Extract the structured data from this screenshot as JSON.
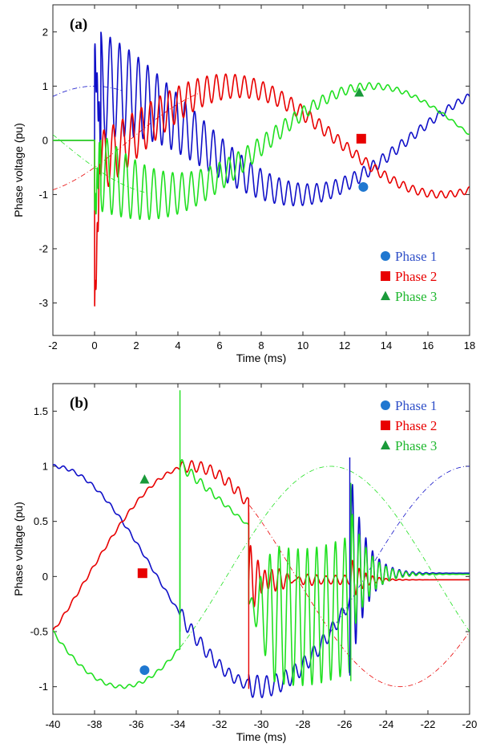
{
  "chart_data": [
    {
      "type": "line",
      "panel_label": "(a)",
      "xlabel": "Time (ms)",
      "ylabel": "Phase voltage (pu)",
      "xlim": [
        -2,
        18
      ],
      "ylim": [
        -3.6,
        2.5
      ],
      "x_ticks": [
        "-2",
        "0",
        "2",
        "4",
        "6",
        "8",
        "10",
        "12",
        "14",
        "16",
        "18"
      ],
      "y_ticks": [
        "-3",
        "-2",
        "-1",
        "0",
        "1",
        "2"
      ],
      "x_tick_values": [
        -2,
        0,
        2,
        4,
        6,
        8,
        10,
        12,
        14,
        16,
        18
      ],
      "y_tick_values": [
        -3,
        -2,
        -1,
        0,
        1,
        2
      ],
      "legend_position": "bottom-right",
      "event_times": [
        0,
        0.3
      ],
      "oscillation_period_ms": 0.45,
      "oscillation_decay_ms": 6,
      "series": [
        {
          "name": "Phase 1",
          "marker": "circle",
          "color": "#1010c8",
          "marker_color": "#1f77d0",
          "text_color": "#3050c8",
          "phase_deg": 90,
          "dashed_to": 1.4,
          "initial_spike": 1.6,
          "ringing_amp": 1.0,
          "marker_x": 12.9,
          "marker_y": -0.86
        },
        {
          "name": "Phase 2",
          "marker": "square",
          "color": "#e80000",
          "marker_color": "#e80000",
          "text_color": "#e80000",
          "phase_deg": -30,
          "dashed_to": 5.0,
          "initial_spike": -3.2,
          "ringing_amp": 0.55,
          "marker_x": 12.8,
          "marker_y": 0.03
        },
        {
          "name": "Phase 3",
          "marker": "triangle",
          "color": "#20e020",
          "marker_color": "#1a9a3a",
          "text_color": "#20b830",
          "phase_deg": 210,
          "dashed_to": 2.7,
          "initial_spike": -1.4,
          "ringing_amp": 0.75,
          "marker_x": 12.7,
          "marker_y": 0.88
        }
      ]
    },
    {
      "type": "line",
      "panel_label": "(b)",
      "xlabel": "Time (ms)",
      "ylabel": "Phase voltage (pu)",
      "xlim": [
        -40,
        -20
      ],
      "ylim": [
        -1.25,
        1.75
      ],
      "x_ticks": [
        "-40",
        "-38",
        "-36",
        "-34",
        "-32",
        "-30",
        "-28",
        "-26",
        "-24",
        "-22",
        "-20"
      ],
      "y_ticks": [
        "-1",
        "-0.5",
        "0",
        "0.5",
        "1",
        "1.5"
      ],
      "x_tick_values": [
        -40,
        -38,
        -36,
        -34,
        -32,
        -30,
        -28,
        -26,
        -24,
        -22,
        -20
      ],
      "y_tick_values": [
        -1,
        -0.5,
        0,
        0.5,
        1,
        1.5
      ],
      "legend_position": "top-right",
      "interruption_times": [
        -33.9,
        -30.6,
        -25.7
      ],
      "oscillation_period_ms": 0.45,
      "series": [
        {
          "name": "Phase 1",
          "marker": "circle",
          "color": "#1010c8",
          "marker_color": "#1f77d0",
          "text_color": "#3050c8",
          "phase_deg": 90,
          "marker_x": -35.6,
          "marker_y": -0.85
        },
        {
          "name": "Phase 2",
          "marker": "square",
          "color": "#e80000",
          "marker_color": "#e80000",
          "text_color": "#e80000",
          "phase_deg": -30,
          "marker_x": -35.7,
          "marker_y": 0.03
        },
        {
          "name": "Phase 3",
          "marker": "triangle",
          "color": "#20e020",
          "marker_color": "#1a9a3a",
          "text_color": "#20b830",
          "phase_deg": 210,
          "marker_x": -35.6,
          "marker_y": 0.88
        }
      ]
    }
  ]
}
